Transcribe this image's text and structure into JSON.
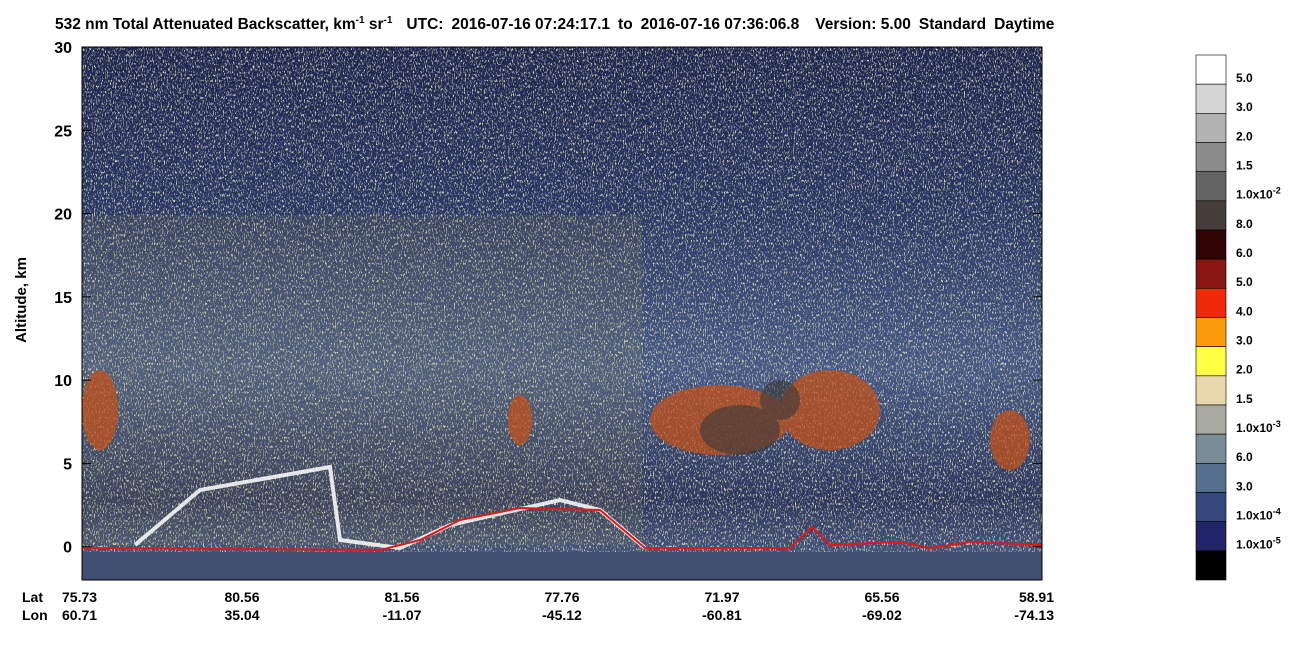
{
  "chart_data": {
    "type": "curtain",
    "title": {
      "text": "532 nm Total Attenuated Backscatter, km",
      "units_exp": "-1",
      "units2": "sr",
      "units2_exp": "-1"
    },
    "utc_label": "UTC:",
    "utc_start": "2016-07-16 07:24:17.1",
    "utc_to": "to",
    "utc_end": "2016-07-16 07:36:06.8",
    "version": "Version: 5.00",
    "product": "Standard",
    "lighting": "Daytime",
    "ylabel": "Altitude, km",
    "ylim": [
      -2,
      30
    ],
    "yticks": [
      0,
      5,
      10,
      15,
      20,
      25,
      30
    ],
    "x_rows": [
      {
        "name": "Lat",
        "labels": [
          "75.73",
          "80.56",
          "81.56",
          "77.76",
          "71.97",
          "65.56",
          "58.91"
        ]
      },
      {
        "name": "Lon",
        "labels": [
          "60.71",
          "35.04",
          "-11.07",
          "-45.12",
          "-60.81",
          "-69.02",
          "-74.13"
        ]
      }
    ],
    "colorbar": {
      "colors": [
        "#ffffff",
        "#d6d6d6",
        "#b2b2b2",
        "#8c8c8c",
        "#646464",
        "#463c3a",
        "#300404",
        "#8a1612",
        "#ee2a08",
        "#fb9a08",
        "#fdfd44",
        "#e8d8ac",
        "#a8aaa0",
        "#7a8c98",
        "#566f8c",
        "#34487e",
        "#222468",
        "#000000"
      ],
      "labels": [
        "5.0",
        "3.0",
        "2.0",
        "1.5",
        {
          "text": "1.0x10",
          "sup": "-2"
        },
        "8.0",
        "6.0",
        "5.0",
        "4.0",
        "3.0",
        "2.0",
        "1.5",
        {
          "text": "1.0x10",
          "sup": "-3"
        },
        "6.0",
        "3.0",
        {
          "text": "1.0x10",
          "sup": "-4"
        },
        {
          "text": "1.0x10",
          "sup": "-5"
        }
      ]
    }
  }
}
